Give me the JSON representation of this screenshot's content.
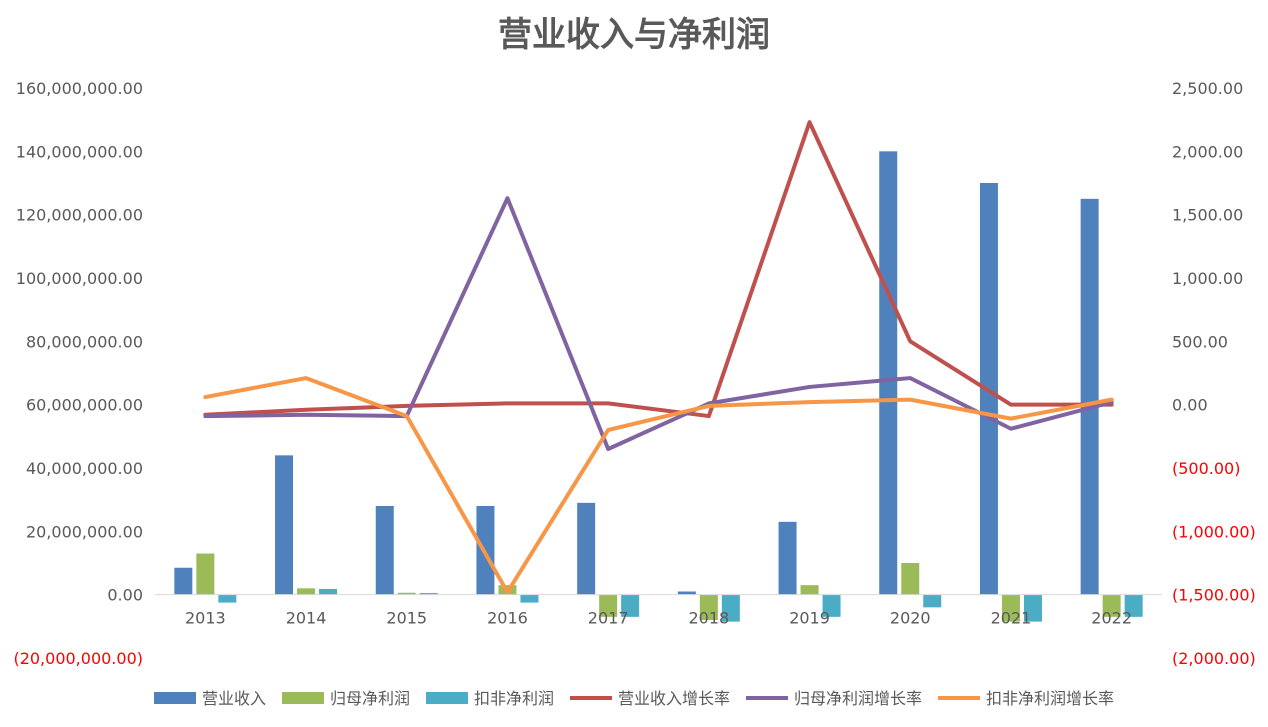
{
  "chart_data": {
    "type": "bar",
    "title": "营业收入与净利润",
    "categories": [
      "2013",
      "2014",
      "2015",
      "2016",
      "2017",
      "2018",
      "2019",
      "2020",
      "2021",
      "2022"
    ],
    "left_axis": {
      "ylim": [
        -20000000,
        160000000
      ],
      "ticks": [
        -20000000,
        0,
        20000000,
        40000000,
        60000000,
        80000000,
        100000000,
        120000000,
        140000000,
        160000000
      ],
      "tick_labels": [
        "(20,000,000.00)",
        "0.00",
        "20,000,000.00",
        "40,000,000.00",
        "60,000,000.00",
        "80,000,000.00",
        "100,000,000.00",
        "120,000,000.00",
        "140,000,000.00",
        "160,000,000.00"
      ]
    },
    "right_axis": {
      "ylim": [
        -2000,
        2500
      ],
      "ticks": [
        -2000,
        -1500,
        -1000,
        -500,
        0,
        500,
        1000,
        1500,
        2000,
        2500
      ],
      "tick_labels": [
        "(2,000.00)",
        "(1,500.00)",
        "(1,000.00)",
        "(500.00)",
        "0.00",
        "500.00",
        "1,000.00",
        "1,500.00",
        "2,000.00",
        "2,500.00"
      ]
    },
    "negative_label_color": "#ff0000",
    "bar_series": [
      {
        "name": "营业收入",
        "color": "#4f81bd",
        "values": [
          8500000,
          44000000,
          28000000,
          28000000,
          29000000,
          1000000,
          23000000,
          140000000,
          130000000,
          125000000
        ]
      },
      {
        "name": "归母净利润",
        "color": "#9bbb59",
        "values": [
          13000000,
          2000000,
          600000,
          3000000,
          -7000000,
          -8000000,
          3000000,
          10000000,
          -8500000,
          -7000000
        ]
      },
      {
        "name": "扣非净利润",
        "color": "#4bacc6",
        "values": [
          -2500000,
          1800000,
          500000,
          -2500000,
          -7000000,
          -8500000,
          -7000000,
          -4000000,
          -8500000,
          -7000000
        ]
      }
    ],
    "line_series": [
      {
        "name": "营业收入增长率",
        "color": "#c0504d",
        "values": [
          -80,
          -40,
          -10,
          10,
          10,
          -90,
          2230,
          500,
          0,
          0
        ]
      },
      {
        "name": "归母净利润增长率",
        "color": "#8064a2",
        "values": [
          -90,
          -80,
          -90,
          1630,
          -350,
          10,
          140,
          210,
          -190,
          20
        ]
      },
      {
        "name": "扣非净利润增长率",
        "color": "#f79646",
        "values": [
          60,
          210,
          -90,
          -1480,
          -200,
          -10,
          20,
          40,
          -110,
          40
        ]
      }
    ],
    "legend_position": "bottom",
    "grid": false
  }
}
